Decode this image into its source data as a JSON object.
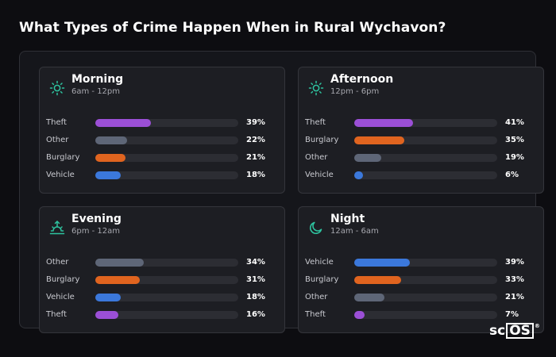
{
  "title": "What Types of Crime Happen When in Rural Wychavon?",
  "logo": {
    "text_a": "sc",
    "text_b": "OS",
    "reg": "®"
  },
  "colors": {
    "Theft": "#9b4fd6",
    "Other": "#5e6677",
    "Burglary": "#e0641f",
    "Vehicle": "#3b78db",
    "icon": "#2ec4a0"
  },
  "chart_data": [
    {
      "type": "bar",
      "title": "Morning",
      "subtitle": "6am - 12pm",
      "icon": "sun-icon",
      "categories": [
        "Theft",
        "Other",
        "Burglary",
        "Vehicle"
      ],
      "values": [
        39,
        22,
        21,
        18
      ],
      "labels": [
        "39%",
        "22%",
        "21%",
        "18%"
      ],
      "xlim": [
        0,
        100
      ]
    },
    {
      "type": "bar",
      "title": "Afternoon",
      "subtitle": "12pm - 6pm",
      "icon": "sun-icon",
      "categories": [
        "Theft",
        "Burglary",
        "Other",
        "Vehicle"
      ],
      "values": [
        41,
        35,
        19,
        6
      ],
      "labels": [
        "41%",
        "35%",
        "19%",
        "6%"
      ],
      "xlim": [
        0,
        100
      ]
    },
    {
      "type": "bar",
      "title": "Evening",
      "subtitle": "6pm - 12am",
      "icon": "sunset-icon",
      "categories": [
        "Other",
        "Burglary",
        "Vehicle",
        "Theft"
      ],
      "values": [
        34,
        31,
        18,
        16
      ],
      "labels": [
        "34%",
        "31%",
        "18%",
        "16%"
      ],
      "xlim": [
        0,
        100
      ]
    },
    {
      "type": "bar",
      "title": "Night",
      "subtitle": "12am - 6am",
      "icon": "moon-icon",
      "categories": [
        "Vehicle",
        "Burglary",
        "Other",
        "Theft"
      ],
      "values": [
        39,
        33,
        21,
        7
      ],
      "labels": [
        "39%",
        "33%",
        "21%",
        "7%"
      ],
      "xlim": [
        0,
        100
      ]
    }
  ]
}
